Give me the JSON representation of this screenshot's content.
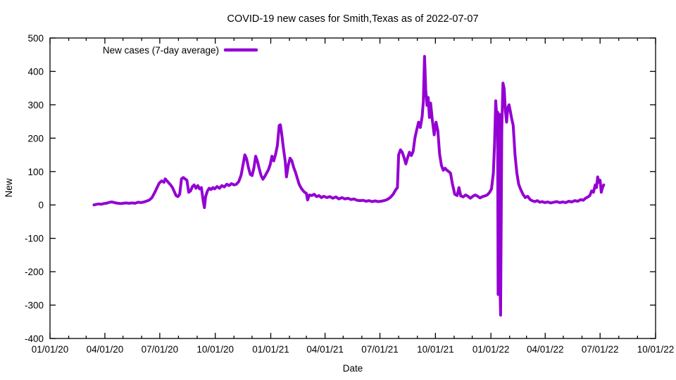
{
  "chart_data": {
    "type": "line",
    "title": "COVID-19 new cases for Smith,Texas as of 2022-07-07",
    "xlabel": "Date",
    "ylabel": "New",
    "grid": false,
    "legend_position": "top-left-inside",
    "legend_entries": [
      "New cases (7-day average)"
    ],
    "line_color": "#9400d3",
    "axis_color": "#000000",
    "ylim": [
      -400,
      500
    ],
    "xlim": [
      "2020-01-01",
      "2022-10-01"
    ],
    "y_ticks": [
      -400,
      -300,
      -200,
      -100,
      0,
      100,
      200,
      300,
      400,
      500
    ],
    "x_ticks": [
      {
        "date": "2020-01-01",
        "label": "01/01/20"
      },
      {
        "date": "2020-04-01",
        "label": "04/01/20"
      },
      {
        "date": "2020-07-01",
        "label": "07/01/20"
      },
      {
        "date": "2020-10-01",
        "label": "10/01/20"
      },
      {
        "date": "2021-01-01",
        "label": "01/01/21"
      },
      {
        "date": "2021-04-01",
        "label": "04/01/21"
      },
      {
        "date": "2021-07-01",
        "label": "07/01/21"
      },
      {
        "date": "2021-10-01",
        "label": "10/01/21"
      },
      {
        "date": "2022-01-01",
        "label": "01/01/22"
      },
      {
        "date": "2022-04-01",
        "label": "04/01/22"
      },
      {
        "date": "2022-07-01",
        "label": "07/01/22"
      },
      {
        "date": "2022-10-01",
        "label": "10/01/22"
      }
    ],
    "minor_x_tick_interval": "1 month",
    "series": [
      {
        "name": "New cases (7-day average)",
        "color": "#9400d3",
        "points": [
          [
            "2020-03-14",
            0
          ],
          [
            "2020-03-18",
            2
          ],
          [
            "2020-03-22",
            3
          ],
          [
            "2020-03-26",
            2
          ],
          [
            "2020-03-30",
            4
          ],
          [
            "2020-04-03",
            5
          ],
          [
            "2020-04-07",
            7
          ],
          [
            "2020-04-11",
            9
          ],
          [
            "2020-04-15",
            8
          ],
          [
            "2020-04-19",
            6
          ],
          [
            "2020-04-23",
            5
          ],
          [
            "2020-04-27",
            4
          ],
          [
            "2020-05-01",
            5
          ],
          [
            "2020-05-06",
            6
          ],
          [
            "2020-05-11",
            5
          ],
          [
            "2020-05-16",
            6
          ],
          [
            "2020-05-21",
            5
          ],
          [
            "2020-05-26",
            8
          ],
          [
            "2020-05-31",
            7
          ],
          [
            "2020-06-05",
            9
          ],
          [
            "2020-06-10",
            12
          ],
          [
            "2020-06-14",
            15
          ],
          [
            "2020-06-18",
            22
          ],
          [
            "2020-06-22",
            35
          ],
          [
            "2020-06-26",
            50
          ],
          [
            "2020-06-30",
            65
          ],
          [
            "2020-07-04",
            72
          ],
          [
            "2020-07-08",
            68
          ],
          [
            "2020-07-10",
            78
          ],
          [
            "2020-07-13",
            72
          ],
          [
            "2020-07-16",
            66
          ],
          [
            "2020-07-19",
            60
          ],
          [
            "2020-07-22",
            52
          ],
          [
            "2020-07-25",
            40
          ],
          [
            "2020-07-28",
            28
          ],
          [
            "2020-07-31",
            25
          ],
          [
            "2020-08-03",
            32
          ],
          [
            "2020-08-06",
            78
          ],
          [
            "2020-08-09",
            82
          ],
          [
            "2020-08-12",
            78
          ],
          [
            "2020-08-15",
            74
          ],
          [
            "2020-08-18",
            38
          ],
          [
            "2020-08-21",
            42
          ],
          [
            "2020-08-24",
            55
          ],
          [
            "2020-08-27",
            60
          ],
          [
            "2020-08-30",
            50
          ],
          [
            "2020-09-02",
            58
          ],
          [
            "2020-09-05",
            48
          ],
          [
            "2020-09-08",
            52
          ],
          [
            "2020-09-11",
            12
          ],
          [
            "2020-09-13",
            -8
          ],
          [
            "2020-09-15",
            25
          ],
          [
            "2020-09-18",
            42
          ],
          [
            "2020-09-21",
            50
          ],
          [
            "2020-09-24",
            46
          ],
          [
            "2020-09-27",
            52
          ],
          [
            "2020-09-30",
            48
          ],
          [
            "2020-10-04",
            55
          ],
          [
            "2020-10-08",
            50
          ],
          [
            "2020-10-12",
            58
          ],
          [
            "2020-10-16",
            54
          ],
          [
            "2020-10-20",
            62
          ],
          [
            "2020-10-24",
            58
          ],
          [
            "2020-10-28",
            64
          ],
          [
            "2020-11-01",
            60
          ],
          [
            "2020-11-05",
            62
          ],
          [
            "2020-11-09",
            70
          ],
          [
            "2020-11-13",
            90
          ],
          [
            "2020-11-16",
            120
          ],
          [
            "2020-11-19",
            150
          ],
          [
            "2020-11-22",
            138
          ],
          [
            "2020-11-25",
            112
          ],
          [
            "2020-11-28",
            92
          ],
          [
            "2020-12-01",
            88
          ],
          [
            "2020-12-04",
            110
          ],
          [
            "2020-12-07",
            146
          ],
          [
            "2020-12-10",
            130
          ],
          [
            "2020-12-13",
            108
          ],
          [
            "2020-12-16",
            88
          ],
          [
            "2020-12-19",
            77
          ],
          [
            "2020-12-22",
            85
          ],
          [
            "2020-12-25",
            95
          ],
          [
            "2020-12-28",
            105
          ],
          [
            "2020-12-31",
            120
          ],
          [
            "2021-01-03",
            146
          ],
          [
            "2021-01-06",
            132
          ],
          [
            "2021-01-09",
            152
          ],
          [
            "2021-01-12",
            178
          ],
          [
            "2021-01-15",
            238
          ],
          [
            "2021-01-17",
            240
          ],
          [
            "2021-01-19",
            215
          ],
          [
            "2021-01-22",
            170
          ],
          [
            "2021-01-25",
            130
          ],
          [
            "2021-01-27",
            84
          ],
          [
            "2021-01-30",
            118
          ],
          [
            "2021-02-02",
            140
          ],
          [
            "2021-02-05",
            132
          ],
          [
            "2021-02-08",
            112
          ],
          [
            "2021-02-11",
            98
          ],
          [
            "2021-02-14",
            80
          ],
          [
            "2021-02-17",
            62
          ],
          [
            "2021-02-20",
            52
          ],
          [
            "2021-02-23",
            44
          ],
          [
            "2021-02-26",
            38
          ],
          [
            "2021-03-01",
            35
          ],
          [
            "2021-03-03",
            15
          ],
          [
            "2021-03-06",
            30
          ],
          [
            "2021-03-10",
            28
          ],
          [
            "2021-03-14",
            32
          ],
          [
            "2021-03-18",
            25
          ],
          [
            "2021-03-22",
            28
          ],
          [
            "2021-03-26",
            22
          ],
          [
            "2021-03-30",
            26
          ],
          [
            "2021-04-04",
            22
          ],
          [
            "2021-04-09",
            25
          ],
          [
            "2021-04-14",
            20
          ],
          [
            "2021-04-19",
            24
          ],
          [
            "2021-04-24",
            18
          ],
          [
            "2021-04-29",
            22
          ],
          [
            "2021-05-04",
            18
          ],
          [
            "2021-05-09",
            20
          ],
          [
            "2021-05-14",
            16
          ],
          [
            "2021-05-19",
            18
          ],
          [
            "2021-05-24",
            14
          ],
          [
            "2021-05-29",
            13
          ],
          [
            "2021-06-03",
            14
          ],
          [
            "2021-06-08",
            11
          ],
          [
            "2021-06-13",
            13
          ],
          [
            "2021-06-18",
            10
          ],
          [
            "2021-06-23",
            12
          ],
          [
            "2021-06-28",
            10
          ],
          [
            "2021-07-03",
            11
          ],
          [
            "2021-07-08",
            13
          ],
          [
            "2021-07-13",
            16
          ],
          [
            "2021-07-18",
            22
          ],
          [
            "2021-07-23",
            32
          ],
          [
            "2021-07-27",
            45
          ],
          [
            "2021-07-30",
            52
          ],
          [
            "2021-08-01",
            150
          ],
          [
            "2021-08-04",
            165
          ],
          [
            "2021-08-07",
            158
          ],
          [
            "2021-08-10",
            142
          ],
          [
            "2021-08-13",
            123
          ],
          [
            "2021-08-16",
            142
          ],
          [
            "2021-08-19",
            158
          ],
          [
            "2021-08-22",
            148
          ],
          [
            "2021-08-25",
            160
          ],
          [
            "2021-08-28",
            200
          ],
          [
            "2021-08-31",
            225
          ],
          [
            "2021-09-03",
            248
          ],
          [
            "2021-09-06",
            232
          ],
          [
            "2021-09-09",
            265
          ],
          [
            "2021-09-11",
            310
          ],
          [
            "2021-09-13",
            445
          ],
          [
            "2021-09-15",
            345
          ],
          [
            "2021-09-17",
            298
          ],
          [
            "2021-09-19",
            322
          ],
          [
            "2021-09-21",
            262
          ],
          [
            "2021-09-23",
            305
          ],
          [
            "2021-09-26",
            252
          ],
          [
            "2021-09-29",
            210
          ],
          [
            "2021-10-02",
            248
          ],
          [
            "2021-10-05",
            222
          ],
          [
            "2021-10-08",
            152
          ],
          [
            "2021-10-11",
            118
          ],
          [
            "2021-10-14",
            104
          ],
          [
            "2021-10-17",
            110
          ],
          [
            "2021-10-20",
            104
          ],
          [
            "2021-10-23",
            100
          ],
          [
            "2021-10-26",
            95
          ],
          [
            "2021-10-29",
            65
          ],
          [
            "2021-11-02",
            32
          ],
          [
            "2021-11-06",
            28
          ],
          [
            "2021-11-09",
            52
          ],
          [
            "2021-11-12",
            27
          ],
          [
            "2021-11-16",
            24
          ],
          [
            "2021-11-20",
            30
          ],
          [
            "2021-11-24",
            26
          ],
          [
            "2021-11-28",
            20
          ],
          [
            "2021-12-02",
            26
          ],
          [
            "2021-12-06",
            30
          ],
          [
            "2021-12-10",
            26
          ],
          [
            "2021-12-14",
            21
          ],
          [
            "2021-12-18",
            25
          ],
          [
            "2021-12-22",
            27
          ],
          [
            "2021-12-26",
            30
          ],
          [
            "2021-12-30",
            38
          ],
          [
            "2022-01-02",
            48
          ],
          [
            "2022-01-05",
            95
          ],
          [
            "2022-01-07",
            180
          ],
          [
            "2022-01-09",
            312
          ],
          [
            "2022-01-11",
            255
          ],
          [
            "2022-01-12",
            278
          ],
          [
            "2022-01-13",
            -268
          ],
          [
            "2022-01-15",
            272
          ],
          [
            "2022-01-16",
            -240
          ],
          [
            "2022-01-17",
            -330
          ],
          [
            "2022-01-19",
            228
          ],
          [
            "2022-01-21",
            365
          ],
          [
            "2022-01-23",
            348
          ],
          [
            "2022-01-25",
            282
          ],
          [
            "2022-01-27",
            248
          ],
          [
            "2022-01-29",
            290
          ],
          [
            "2022-01-31",
            300
          ],
          [
            "2022-02-02",
            282
          ],
          [
            "2022-02-04",
            262
          ],
          [
            "2022-02-07",
            238
          ],
          [
            "2022-02-10",
            150
          ],
          [
            "2022-02-13",
            95
          ],
          [
            "2022-02-16",
            62
          ],
          [
            "2022-02-19",
            48
          ],
          [
            "2022-02-23",
            32
          ],
          [
            "2022-02-27",
            22
          ],
          [
            "2022-03-03",
            26
          ],
          [
            "2022-03-07",
            16
          ],
          [
            "2022-03-11",
            12
          ],
          [
            "2022-03-15",
            10
          ],
          [
            "2022-03-19",
            13
          ],
          [
            "2022-03-23",
            8
          ],
          [
            "2022-03-27",
            10
          ],
          [
            "2022-03-31",
            7
          ],
          [
            "2022-04-05",
            9
          ],
          [
            "2022-04-10",
            6
          ],
          [
            "2022-04-15",
            8
          ],
          [
            "2022-04-20",
            10
          ],
          [
            "2022-04-25",
            7
          ],
          [
            "2022-04-30",
            9
          ],
          [
            "2022-05-05",
            7
          ],
          [
            "2022-05-10",
            11
          ],
          [
            "2022-05-15",
            9
          ],
          [
            "2022-05-20",
            13
          ],
          [
            "2022-05-25",
            11
          ],
          [
            "2022-05-30",
            16
          ],
          [
            "2022-06-03",
            14
          ],
          [
            "2022-06-07",
            20
          ],
          [
            "2022-06-11",
            24
          ],
          [
            "2022-06-14",
            28
          ],
          [
            "2022-06-17",
            42
          ],
          [
            "2022-06-20",
            38
          ],
          [
            "2022-06-23",
            60
          ],
          [
            "2022-06-25",
            52
          ],
          [
            "2022-06-27",
            84
          ],
          [
            "2022-06-29",
            68
          ],
          [
            "2022-07-01",
            74
          ],
          [
            "2022-07-03",
            38
          ],
          [
            "2022-07-05",
            52
          ],
          [
            "2022-07-07",
            60
          ]
        ]
      }
    ]
  }
}
